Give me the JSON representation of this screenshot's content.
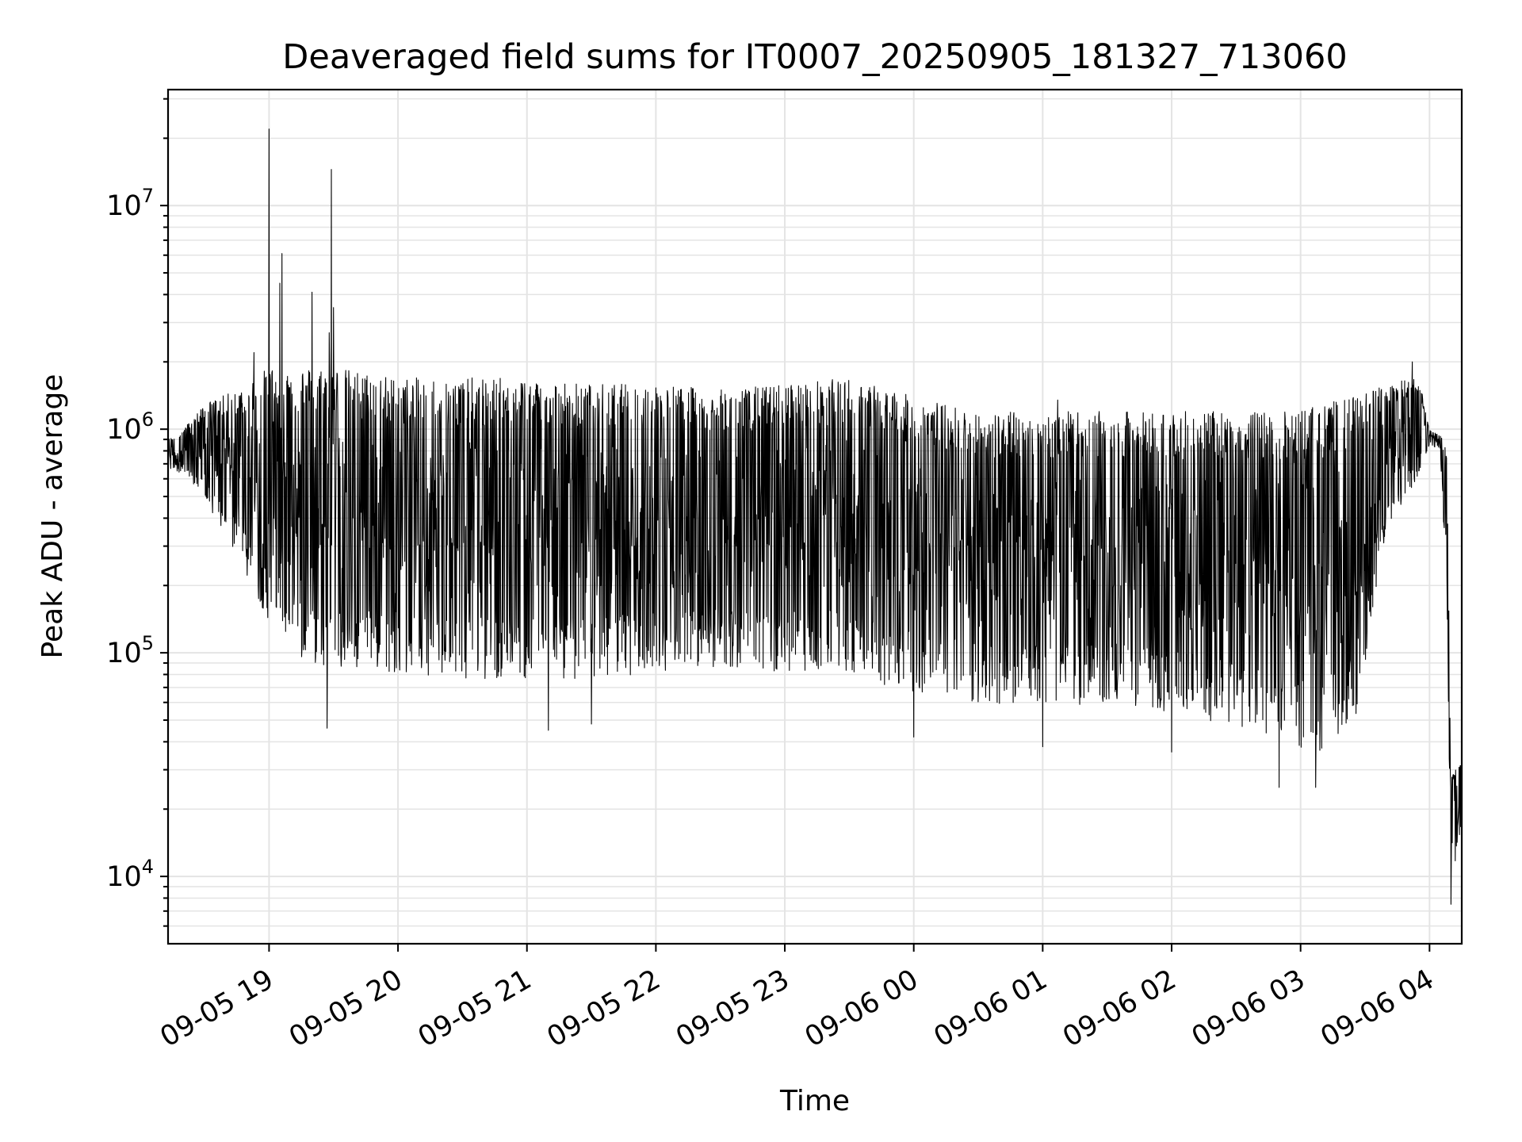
{
  "chart_data": {
    "type": "line",
    "title": "Deaveraged field sums for IT0007_20250905_181327_713060",
    "xlabel": "Time",
    "ylabel": "Peak ADU - average",
    "yscale": "log",
    "ylim": [
      5000,
      33000000
    ],
    "xlim": [
      "2025-09-05 18:13",
      "2025-09-06 04:15"
    ],
    "grid": true,
    "x_ticks": [
      "09-05 19",
      "09-05 20",
      "09-05 21",
      "09-05 22",
      "09-05 23",
      "09-06 00",
      "09-06 01",
      "09-06 02",
      "09-06 03",
      "09-06 04"
    ],
    "y_ticks": [
      {
        "value": 10000,
        "base": "10",
        "exp": "4"
      },
      {
        "value": 100000,
        "base": "10",
        "exp": "5"
      },
      {
        "value": 1000000,
        "base": "10",
        "exp": "6"
      },
      {
        "value": 10000000,
        "base": "10",
        "exp": "7"
      }
    ],
    "series": [
      {
        "color": "#000000",
        "envelope": {
          "x": [
            "2025-09-05 18:13",
            "2025-09-05 18:20",
            "2025-09-05 18:30",
            "2025-09-05 18:45",
            "2025-09-05 19:00",
            "2025-09-05 19:15",
            "2025-09-05 19:30",
            "2025-09-05 20:00",
            "2025-09-05 20:30",
            "2025-09-05 21:00",
            "2025-09-05 21:30",
            "2025-09-05 22:00",
            "2025-09-05 22:30",
            "2025-09-05 23:00",
            "2025-09-05 23:30",
            "2025-09-06 00:00",
            "2025-09-06 00:30",
            "2025-09-06 01:00",
            "2025-09-06 01:30",
            "2025-09-06 02:00",
            "2025-09-06 02:30",
            "2025-09-06 02:55",
            "2025-09-06 03:10",
            "2025-09-06 03:25",
            "2025-09-06 03:40",
            "2025-09-06 03:55",
            "2025-09-06 04:00",
            "2025-09-06 04:05",
            "2025-09-06 04:08",
            "2025-09-06 04:10",
            "2025-09-06 04:15"
          ],
          "high": [
            900000,
            1000000,
            1300000,
            1500000,
            1900000,
            1900000,
            1900000,
            1700000,
            1700000,
            1700000,
            1600000,
            1600000,
            1500000,
            1600000,
            1700000,
            1400000,
            1200000,
            1200000,
            1200000,
            1200000,
            1200000,
            1200000,
            1300000,
            1400000,
            1600000,
            1700000,
            1000000,
            950000,
            800000,
            30000,
            35000
          ],
          "low": [
            650000,
            620000,
            450000,
            250000,
            120000,
            80000,
            70000,
            70000,
            65000,
            65000,
            65000,
            70000,
            75000,
            70000,
            70000,
            55000,
            50000,
            50000,
            50000,
            45000,
            40000,
            32000,
            30000,
            40000,
            300000,
            600000,
            850000,
            800000,
            150000,
            9000,
            15000
          ]
        },
        "peaks": [
          {
            "x": "2025-09-05 18:53",
            "y": 2200000
          },
          {
            "x": "2025-09-05 19:00",
            "y": 22000000
          },
          {
            "x": "2025-09-05 19:05",
            "y": 4500000
          },
          {
            "x": "2025-09-05 19:06",
            "y": 6100000
          },
          {
            "x": "2025-09-05 19:20",
            "y": 4100000
          },
          {
            "x": "2025-09-05 19:28",
            "y": 2700000
          },
          {
            "x": "2025-09-05 19:29",
            "y": 14500000
          },
          {
            "x": "2025-09-05 19:30",
            "y": 3500000
          },
          {
            "x": "2025-09-06 01:07",
            "y": 1350000
          },
          {
            "x": "2025-09-06 03:52",
            "y": 2000000
          }
        ],
        "dips": [
          {
            "x": "2025-09-05 19:27",
            "y": 46000
          },
          {
            "x": "2025-09-05 21:10",
            "y": 45000
          },
          {
            "x": "2025-09-05 21:30",
            "y": 48000
          },
          {
            "x": "2025-09-06 00:00",
            "y": 42000
          },
          {
            "x": "2025-09-06 01:00",
            "y": 38000
          },
          {
            "x": "2025-09-06 02:00",
            "y": 36000
          },
          {
            "x": "2025-09-06 02:50",
            "y": 25000
          },
          {
            "x": "2025-09-06 03:07",
            "y": 25000
          },
          {
            "x": "2025-09-06 04:10",
            "y": 7500
          }
        ]
      }
    ]
  }
}
